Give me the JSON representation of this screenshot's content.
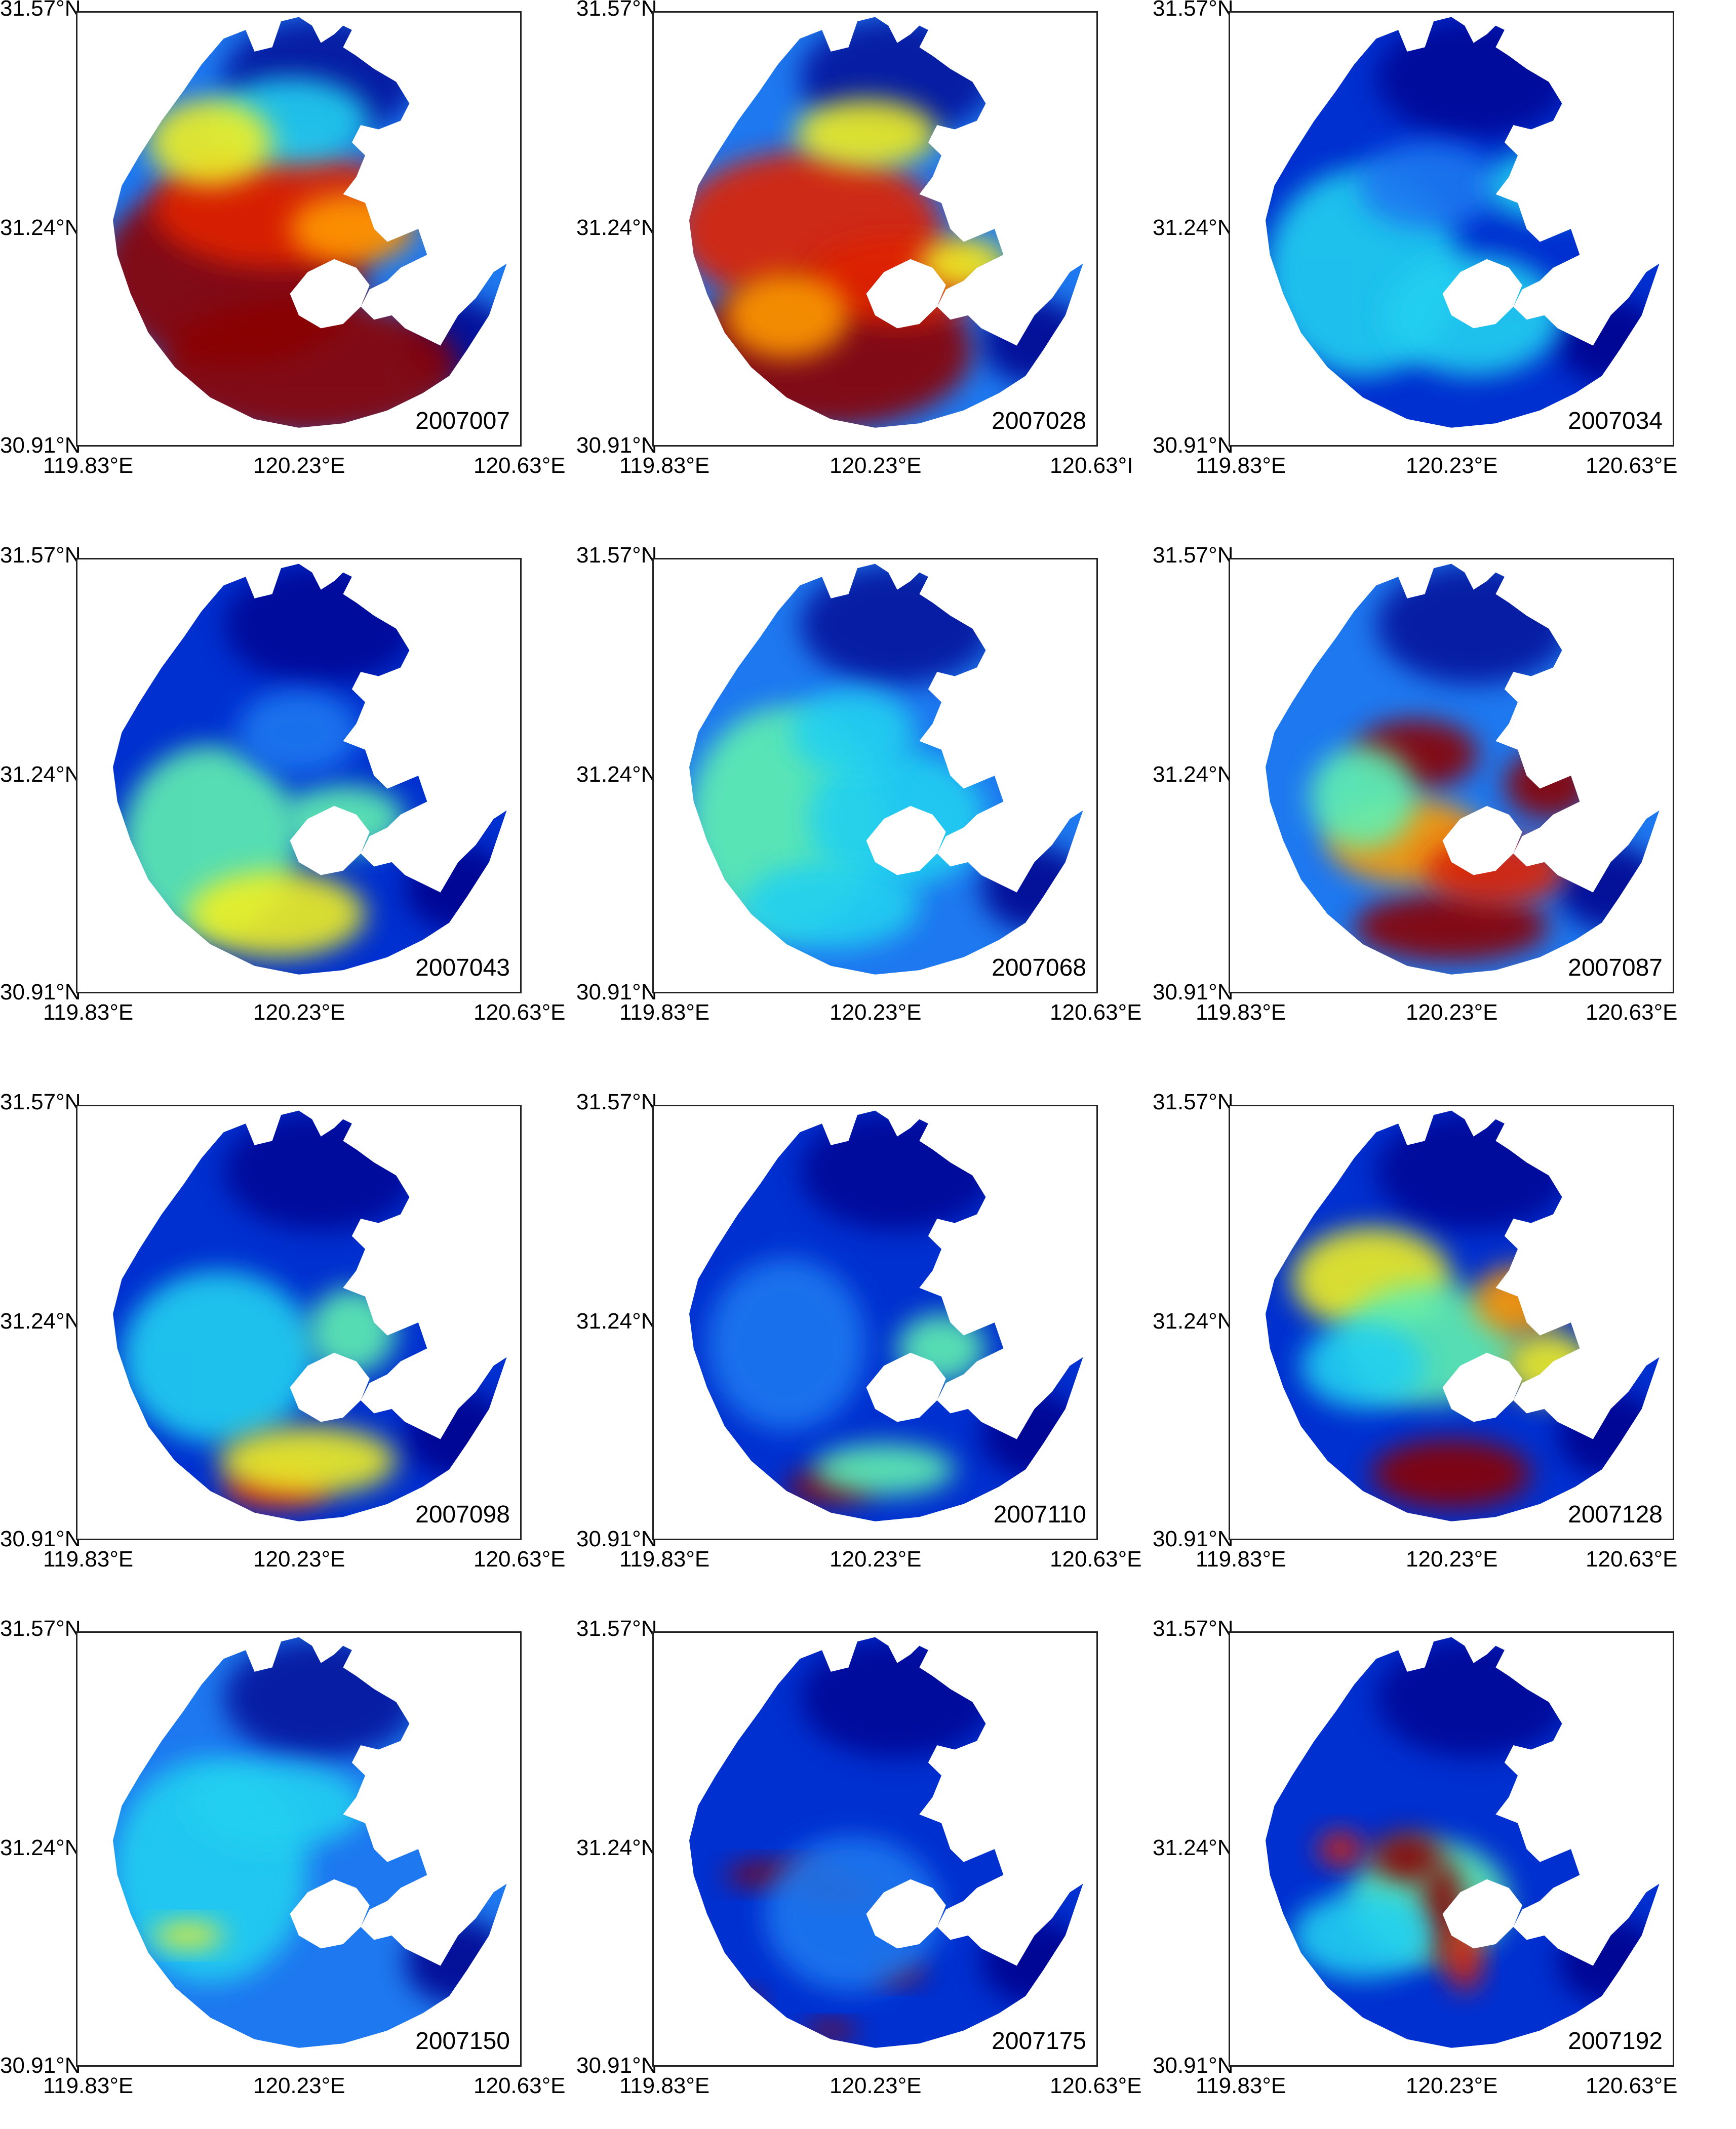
{
  "labels": {
    "lat_top": "31.57°N",
    "lat_mid": "31.24°N",
    "lat_bottom": "30.91°N",
    "lon_left": "119.83°E",
    "lon_mid": "120.23°E",
    "lon_right": "120.63°E",
    "lon_right_clipped": "120.63°I"
  },
  "colormap": [
    "#00008b",
    "#0030d0",
    "#1e78f0",
    "#20d0f0",
    "#60f0b0",
    "#f0f020",
    "#ff9a00",
    "#e02000",
    "#8b0000"
  ],
  "panels": [
    {
      "date": "2007007",
      "intensity": "very high (red/dark red over west and south)"
    },
    {
      "date": "2007028",
      "intensity": "very high (red/dark red over center and south)"
    },
    {
      "date": "2007034",
      "intensity": "low (blue/cyan)"
    },
    {
      "date": "2007043",
      "intensity": "low-moderate (blue/cyan, yellow-green in south)"
    },
    {
      "date": "2007068",
      "intensity": "low-moderate (light blue/cyan)"
    },
    {
      "date": "2007087",
      "intensity": "high (red patches center and south)"
    },
    {
      "date": "2007098",
      "intensity": "low-moderate (blue/cyan, red spot south)"
    },
    {
      "date": "2007110",
      "intensity": "low (blue, small red spot south)"
    },
    {
      "date": "2007128",
      "intensity": "moderate-high (yellow/red patches)"
    },
    {
      "date": "2007150",
      "intensity": "low (blue/cyan)"
    },
    {
      "date": "2007175",
      "intensity": "low with red streaks in west"
    },
    {
      "date": "2007192",
      "intensity": "low with red streaks center"
    }
  ]
}
